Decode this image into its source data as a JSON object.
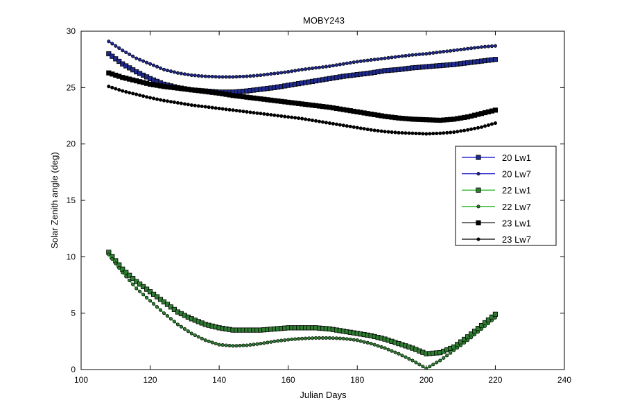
{
  "chart_data": {
    "type": "line",
    "title": "MOBY243",
    "xlabel": "Julian Days",
    "ylabel": "Solar Zenith angle (deg)",
    "xlim": [
      100,
      240
    ],
    "ylim": [
      0,
      30
    ],
    "xticks": [
      100,
      120,
      140,
      160,
      180,
      200,
      220,
      240
    ],
    "yticks": [
      0,
      5,
      10,
      15,
      20,
      25,
      30
    ],
    "grid": false,
    "legend_position": "right",
    "series": [
      {
        "name": "20 Lw1",
        "marker": "square",
        "line_color": "#0000CC",
        "marker_color": "#1f2a8f",
        "x": [
          108,
          112,
          116,
          120,
          124,
          128,
          132,
          136,
          140,
          144,
          148,
          152,
          156,
          160,
          164,
          168,
          172,
          176,
          180,
          184,
          188,
          192,
          196,
          200,
          204,
          208,
          212,
          216,
          220
        ],
        "y": [
          28.0,
          27.1,
          26.4,
          25.8,
          25.3,
          25.0,
          24.8,
          24.7,
          24.6,
          24.6,
          24.7,
          24.85,
          25.0,
          25.2,
          25.4,
          25.6,
          25.8,
          26.0,
          26.15,
          26.3,
          26.5,
          26.6,
          26.75,
          26.85,
          26.95,
          27.05,
          27.2,
          27.35,
          27.5
        ]
      },
      {
        "name": "20 Lw7",
        "marker": "circle",
        "line_color": "#0000CC",
        "marker_color": "#1f2a8f",
        "x": [
          108,
          112,
          116,
          120,
          124,
          128,
          132,
          136,
          140,
          144,
          148,
          152,
          156,
          160,
          164,
          168,
          172,
          176,
          180,
          184,
          188,
          192,
          196,
          200,
          204,
          208,
          212,
          216,
          220
        ],
        "y": [
          29.1,
          28.3,
          27.6,
          27.1,
          26.6,
          26.3,
          26.1,
          26.0,
          25.95,
          25.95,
          26.0,
          26.1,
          26.25,
          26.4,
          26.6,
          26.75,
          26.9,
          27.1,
          27.3,
          27.45,
          27.6,
          27.75,
          27.9,
          28.0,
          28.15,
          28.3,
          28.45,
          28.6,
          28.7
        ]
      },
      {
        "name": "22 Lw1",
        "marker": "square",
        "line_color": "#00AA00",
        "marker_color": "#2e7d32",
        "x": [
          108,
          112,
          116,
          120,
          124,
          128,
          132,
          136,
          140,
          144,
          148,
          152,
          156,
          160,
          164,
          168,
          172,
          176,
          180,
          184,
          188,
          192,
          196,
          200,
          204,
          208,
          212,
          216,
          220
        ],
        "y": [
          10.4,
          8.9,
          7.8,
          6.9,
          6.0,
          5.1,
          4.5,
          4.0,
          3.7,
          3.5,
          3.5,
          3.5,
          3.6,
          3.7,
          3.7,
          3.7,
          3.6,
          3.4,
          3.2,
          3.0,
          2.7,
          2.3,
          1.9,
          1.4,
          1.5,
          2.0,
          2.9,
          3.9,
          4.9
        ]
      },
      {
        "name": "22 Lw7",
        "marker": "circle",
        "line_color": "#00AA00",
        "marker_color": "#2e7d32",
        "x": [
          108,
          112,
          116,
          120,
          124,
          128,
          132,
          136,
          140,
          144,
          148,
          152,
          156,
          160,
          164,
          168,
          172,
          176,
          180,
          184,
          188,
          192,
          196,
          200,
          204,
          208,
          212,
          216,
          220
        ],
        "y": [
          10.2,
          8.6,
          7.2,
          6.1,
          5.0,
          4.0,
          3.2,
          2.6,
          2.2,
          2.1,
          2.15,
          2.3,
          2.5,
          2.65,
          2.75,
          2.8,
          2.8,
          2.75,
          2.6,
          2.3,
          1.9,
          1.4,
          0.8,
          0.1,
          0.8,
          1.7,
          2.6,
          3.6,
          4.6
        ]
      },
      {
        "name": "23 Lw1",
        "marker": "square",
        "line_color": "#000000",
        "marker_color": "#000000",
        "x": [
          108,
          112,
          116,
          120,
          124,
          128,
          132,
          136,
          140,
          144,
          148,
          152,
          156,
          160,
          164,
          168,
          172,
          176,
          180,
          184,
          188,
          192,
          196,
          200,
          204,
          208,
          212,
          216,
          220
        ],
        "y": [
          26.3,
          25.9,
          25.6,
          25.3,
          25.1,
          24.95,
          24.8,
          24.65,
          24.5,
          24.3,
          24.15,
          24.0,
          23.85,
          23.7,
          23.55,
          23.4,
          23.25,
          23.05,
          22.85,
          22.65,
          22.45,
          22.3,
          22.2,
          22.15,
          22.1,
          22.2,
          22.4,
          22.7,
          23.0
        ]
      },
      {
        "name": "23 Lw7",
        "marker": "circle",
        "line_color": "#000000",
        "marker_color": "#000000",
        "x": [
          108,
          112,
          116,
          120,
          124,
          128,
          132,
          136,
          140,
          144,
          148,
          152,
          156,
          160,
          164,
          168,
          172,
          176,
          180,
          184,
          188,
          192,
          196,
          200,
          204,
          208,
          212,
          216,
          220
        ],
        "y": [
          25.1,
          24.7,
          24.4,
          24.1,
          23.85,
          23.65,
          23.45,
          23.3,
          23.15,
          23.0,
          22.85,
          22.7,
          22.55,
          22.4,
          22.25,
          22.05,
          21.85,
          21.65,
          21.45,
          21.25,
          21.1,
          21.0,
          20.95,
          20.9,
          20.95,
          21.05,
          21.25,
          21.5,
          21.85
        ]
      }
    ]
  }
}
